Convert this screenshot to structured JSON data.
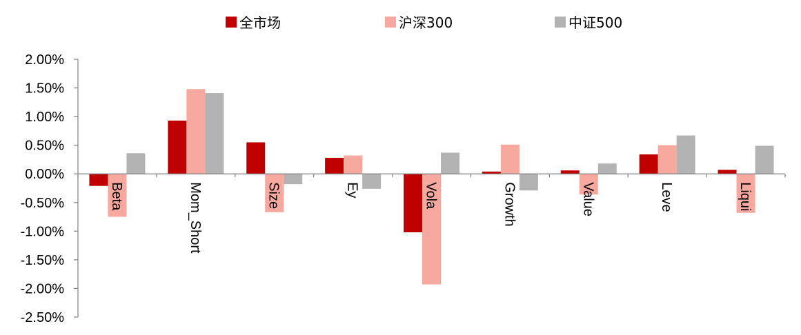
{
  "chart_data": {
    "type": "bar",
    "categories": [
      "Beta",
      "Mom_Short",
      "Size",
      "Ey",
      "Vola",
      "Growth",
      "Value",
      "Leve",
      "Liqui"
    ],
    "series": [
      {
        "name": "全市场",
        "color": "#C00000",
        "values": [
          -0.21,
          0.93,
          0.55,
          0.28,
          -1.02,
          0.04,
          0.06,
          0.34,
          0.07
        ]
      },
      {
        "name": "沪深300",
        "color": "#F7A9A0",
        "values": [
          -0.75,
          1.48,
          -0.67,
          0.32,
          -1.93,
          0.51,
          -0.36,
          0.5,
          -0.68
        ]
      },
      {
        "name": "中证500",
        "color": "#B3B3B3",
        "values": [
          0.36,
          1.41,
          -0.18,
          -0.26,
          0.37,
          -0.29,
          0.18,
          0.67,
          0.49
        ]
      }
    ],
    "ylim": [
      -2.5,
      2.0
    ],
    "yticks": [
      "2.00%",
      "1.50%",
      "1.00%",
      "0.50%",
      "0.00%",
      "-0.50%",
      "-1.00%",
      "-1.50%",
      "-2.00%",
      "-2.50%"
    ],
    "ytick_values": [
      2.0,
      1.5,
      1.0,
      0.5,
      0.0,
      -0.5,
      -1.0,
      -1.5,
      -2.0,
      -2.5
    ],
    "legend_position": "top-center",
    "grid": false
  }
}
